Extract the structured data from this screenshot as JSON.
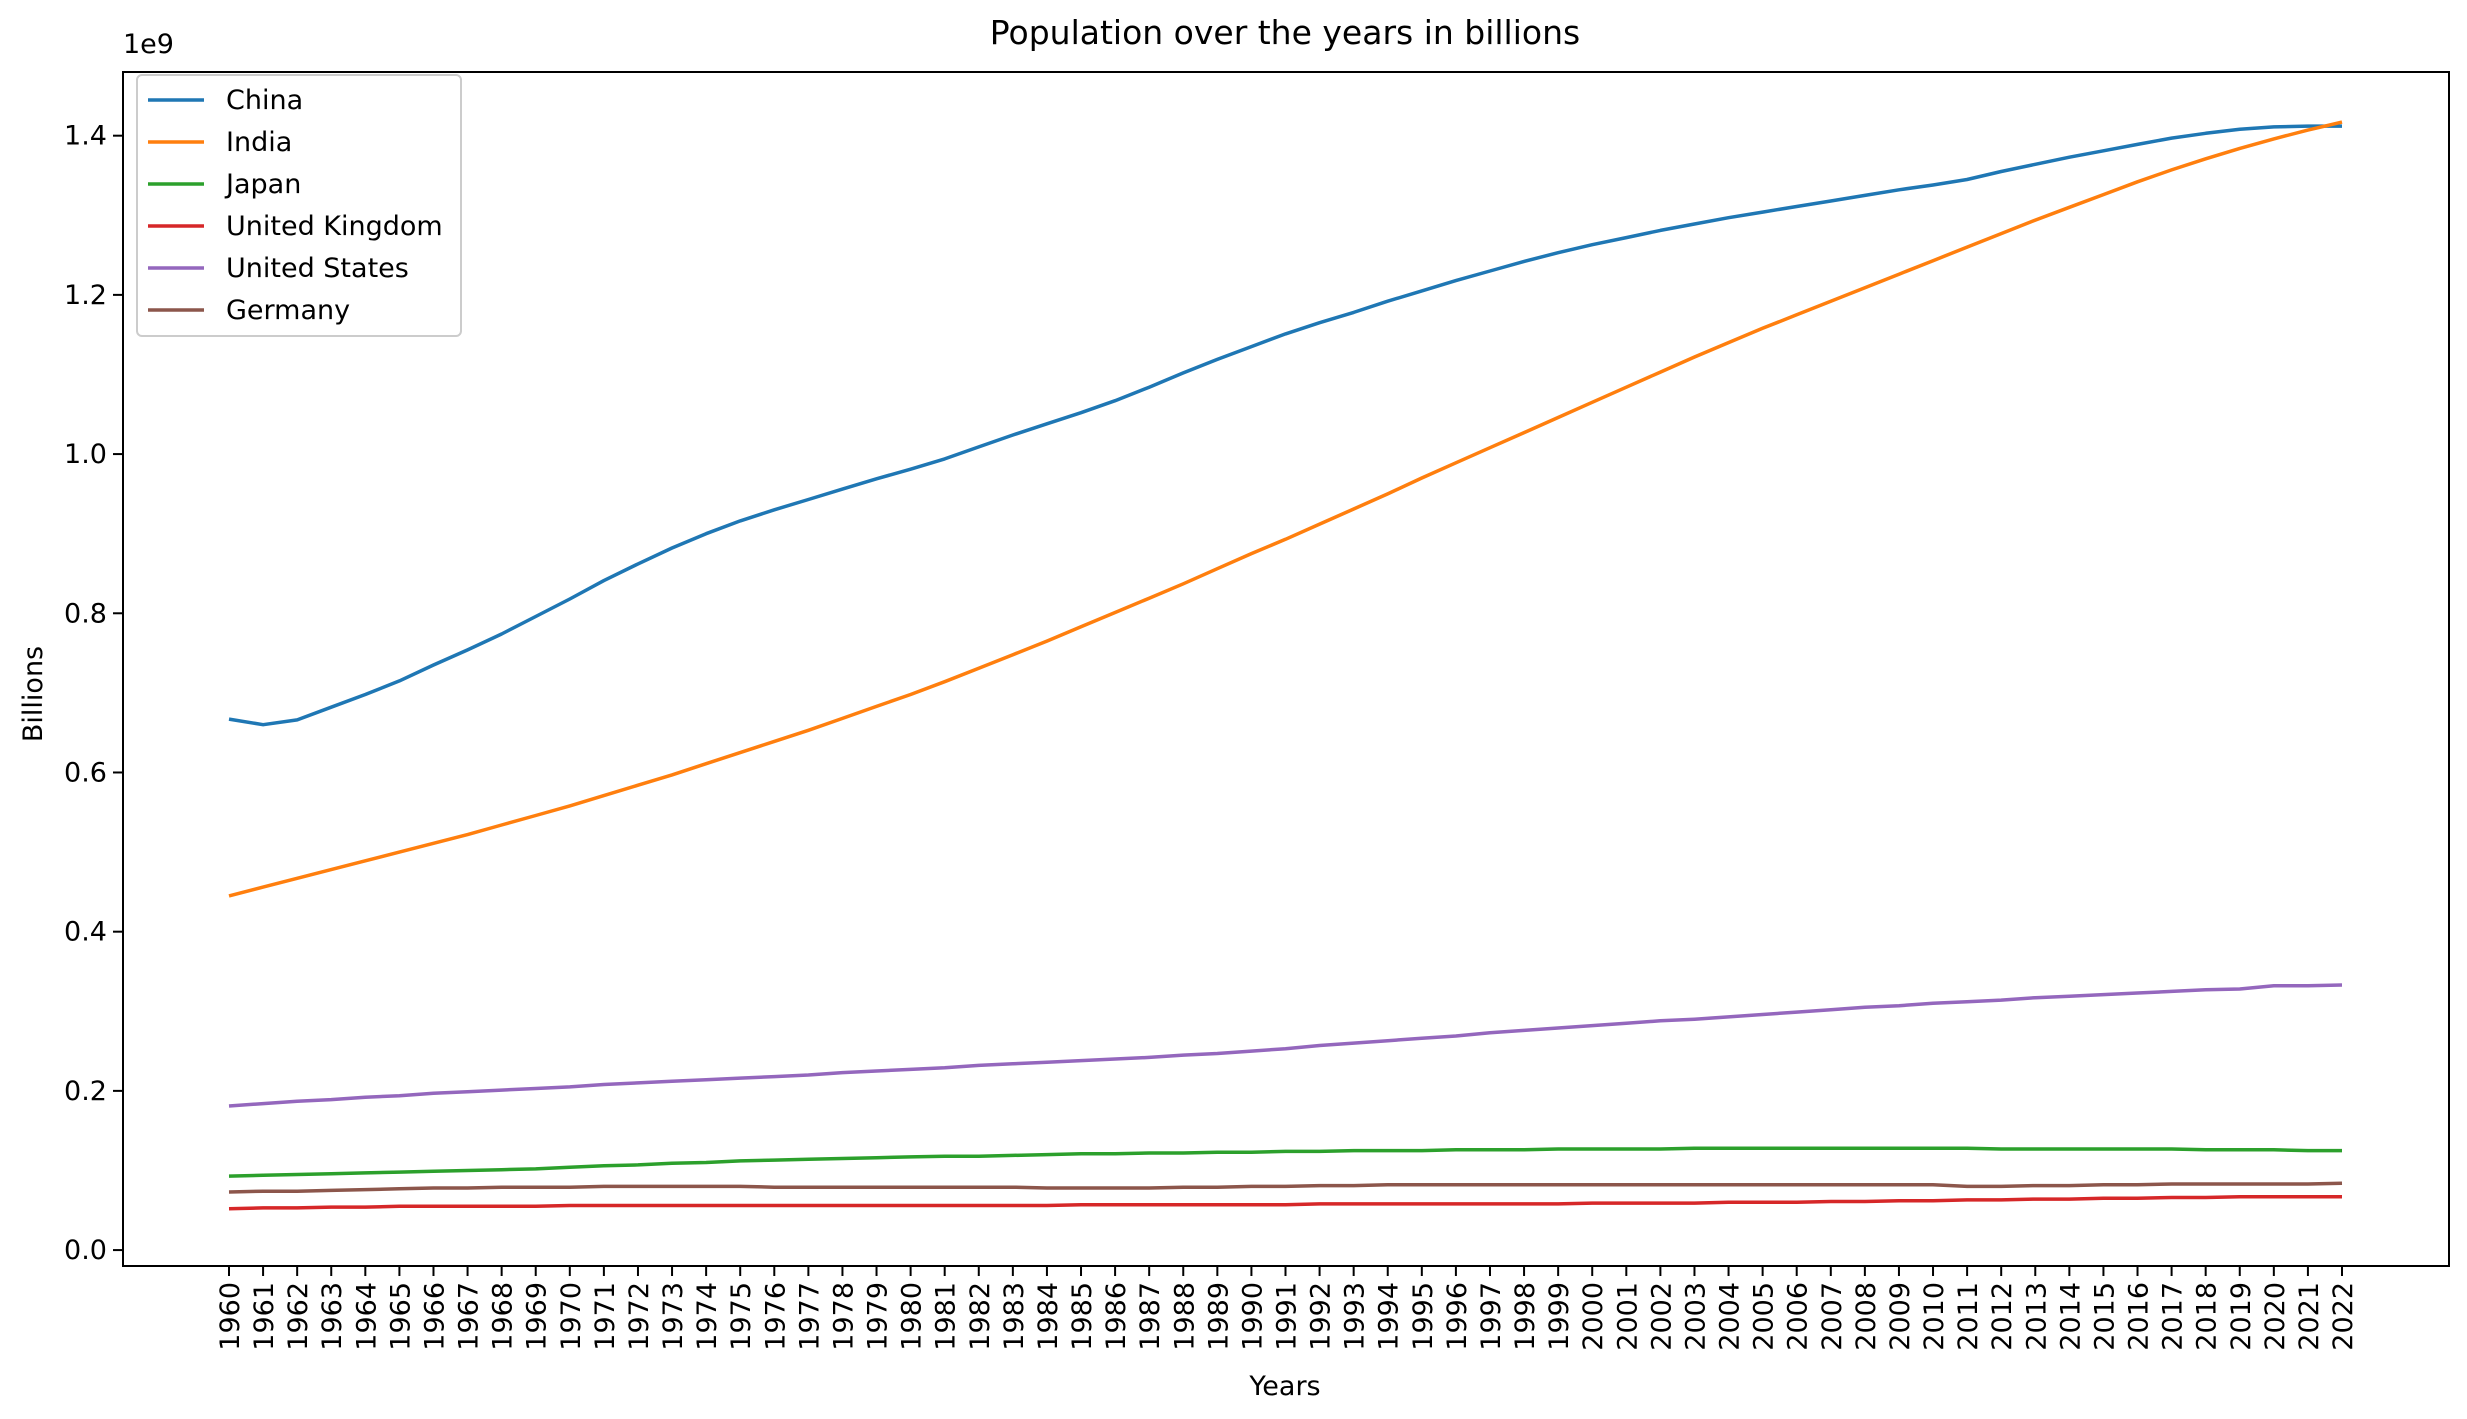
{
  "chart_data": {
    "type": "line",
    "title": "Population over the years in billions",
    "xlabel": "Years",
    "ylabel": "Billions",
    "offset_label": "1e9",
    "ylim": [
      -0.02,
      1.48
    ],
    "yticks": [
      0.0,
      0.2,
      0.4,
      0.6,
      0.8,
      1.0,
      1.2,
      1.4
    ],
    "ytick_labels": [
      "0.0",
      "0.2",
      "0.4",
      "0.6",
      "0.8",
      "1.0",
      "1.2",
      "1.4"
    ],
    "legend_position": "upper-left",
    "grid": false,
    "x": [
      "1960",
      "1961",
      "1962",
      "1963",
      "1964",
      "1965",
      "1966",
      "1967",
      "1968",
      "1969",
      "1970",
      "1971",
      "1972",
      "1973",
      "1974",
      "1975",
      "1976",
      "1977",
      "1978",
      "1979",
      "1980",
      "1981",
      "1982",
      "1983",
      "1984",
      "1985",
      "1986",
      "1987",
      "1988",
      "1989",
      "1990",
      "1991",
      "1992",
      "1993",
      "1994",
      "1995",
      "1996",
      "1997",
      "1998",
      "1999",
      "2000",
      "2001",
      "2002",
      "2003",
      "2004",
      "2005",
      "2006",
      "2007",
      "2008",
      "2009",
      "2010",
      "2011",
      "2012",
      "2013",
      "2014",
      "2015",
      "2016",
      "2017",
      "2018",
      "2019",
      "2020",
      "2021",
      "2022"
    ],
    "series": [
      {
        "name": "China",
        "color": "#1f77b4",
        "values": [
          0.667,
          0.66,
          0.666,
          0.682,
          0.698,
          0.715,
          0.735,
          0.754,
          0.774,
          0.796,
          0.818,
          0.841,
          0.862,
          0.882,
          0.9,
          0.916,
          0.93,
          0.943,
          0.956,
          0.969,
          0.981,
          0.994,
          1.009,
          1.024,
          1.038,
          1.052,
          1.067,
          1.084,
          1.102,
          1.119,
          1.135,
          1.151,
          1.165,
          1.178,
          1.192,
          1.205,
          1.218,
          1.23,
          1.242,
          1.253,
          1.263,
          1.272,
          1.281,
          1.289,
          1.297,
          1.304,
          1.311,
          1.318,
          1.325,
          1.332,
          1.338,
          1.345,
          1.355,
          1.364,
          1.373,
          1.381,
          1.389,
          1.397,
          1.403,
          1.408,
          1.411,
          1.412,
          1.412
        ]
      },
      {
        "name": "India",
        "color": "#ff7f0e",
        "values": [
          0.445,
          0.456,
          0.467,
          0.478,
          0.489,
          0.5,
          0.511,
          0.522,
          0.534,
          0.546,
          0.558,
          0.571,
          0.584,
          0.597,
          0.611,
          0.625,
          0.639,
          0.653,
          0.668,
          0.683,
          0.698,
          0.714,
          0.731,
          0.748,
          0.765,
          0.783,
          0.801,
          0.819,
          0.837,
          0.856,
          0.875,
          0.893,
          0.912,
          0.931,
          0.95,
          0.97,
          0.989,
          1.008,
          1.027,
          1.046,
          1.065,
          1.084,
          1.103,
          1.122,
          1.14,
          1.158,
          1.175,
          1.192,
          1.209,
          1.226,
          1.243,
          1.26,
          1.277,
          1.294,
          1.31,
          1.326,
          1.342,
          1.357,
          1.371,
          1.384,
          1.396,
          1.407,
          1.417
        ]
      },
      {
        "name": "Japan",
        "color": "#2ca02c",
        "values": [
          0.093,
          0.094,
          0.095,
          0.096,
          0.097,
          0.098,
          0.099,
          0.1,
          0.101,
          0.102,
          0.104,
          0.106,
          0.107,
          0.109,
          0.11,
          0.112,
          0.113,
          0.114,
          0.115,
          0.116,
          0.117,
          0.118,
          0.118,
          0.119,
          0.12,
          0.121,
          0.121,
          0.122,
          0.122,
          0.123,
          0.123,
          0.124,
          0.124,
          0.125,
          0.125,
          0.125,
          0.126,
          0.126,
          0.126,
          0.127,
          0.127,
          0.127,
          0.127,
          0.128,
          0.128,
          0.128,
          0.128,
          0.128,
          0.128,
          0.128,
          0.128,
          0.128,
          0.127,
          0.127,
          0.127,
          0.127,
          0.127,
          0.127,
          0.126,
          0.126,
          0.126,
          0.125,
          0.125
        ]
      },
      {
        "name": "United Kingdom",
        "color": "#d62728",
        "values": [
          0.052,
          0.053,
          0.053,
          0.054,
          0.054,
          0.055,
          0.055,
          0.055,
          0.055,
          0.055,
          0.056,
          0.056,
          0.056,
          0.056,
          0.056,
          0.056,
          0.056,
          0.056,
          0.056,
          0.056,
          0.056,
          0.056,
          0.056,
          0.056,
          0.056,
          0.057,
          0.057,
          0.057,
          0.057,
          0.057,
          0.057,
          0.057,
          0.058,
          0.058,
          0.058,
          0.058,
          0.058,
          0.058,
          0.058,
          0.058,
          0.059,
          0.059,
          0.059,
          0.059,
          0.06,
          0.06,
          0.06,
          0.061,
          0.061,
          0.062,
          0.062,
          0.063,
          0.063,
          0.064,
          0.064,
          0.065,
          0.065,
          0.066,
          0.066,
          0.067,
          0.067,
          0.067,
          0.067
        ]
      },
      {
        "name": "United States",
        "color": "#9467bd",
        "values": [
          0.181,
          0.184,
          0.187,
          0.189,
          0.192,
          0.194,
          0.197,
          0.199,
          0.201,
          0.203,
          0.205,
          0.208,
          0.21,
          0.212,
          0.214,
          0.216,
          0.218,
          0.22,
          0.223,
          0.225,
          0.227,
          0.229,
          0.232,
          0.234,
          0.236,
          0.238,
          0.24,
          0.242,
          0.245,
          0.247,
          0.25,
          0.253,
          0.257,
          0.26,
          0.263,
          0.266,
          0.269,
          0.273,
          0.276,
          0.279,
          0.282,
          0.285,
          0.288,
          0.29,
          0.293,
          0.296,
          0.299,
          0.302,
          0.305,
          0.307,
          0.31,
          0.312,
          0.314,
          0.317,
          0.319,
          0.321,
          0.323,
          0.325,
          0.327,
          0.328,
          0.332,
          0.332,
          0.333
        ]
      },
      {
        "name": "Germany",
        "color": "#8c564b",
        "values": [
          0.073,
          0.074,
          0.074,
          0.075,
          0.076,
          0.077,
          0.078,
          0.078,
          0.079,
          0.079,
          0.079,
          0.08,
          0.08,
          0.08,
          0.08,
          0.08,
          0.079,
          0.079,
          0.079,
          0.079,
          0.079,
          0.079,
          0.079,
          0.079,
          0.078,
          0.078,
          0.078,
          0.078,
          0.079,
          0.079,
          0.08,
          0.08,
          0.081,
          0.081,
          0.082,
          0.082,
          0.082,
          0.082,
          0.082,
          0.082,
          0.082,
          0.082,
          0.082,
          0.082,
          0.082,
          0.082,
          0.082,
          0.082,
          0.082,
          0.082,
          0.082,
          0.08,
          0.08,
          0.081,
          0.081,
          0.082,
          0.082,
          0.083,
          0.083,
          0.083,
          0.083,
          0.083,
          0.084
        ]
      }
    ]
  }
}
